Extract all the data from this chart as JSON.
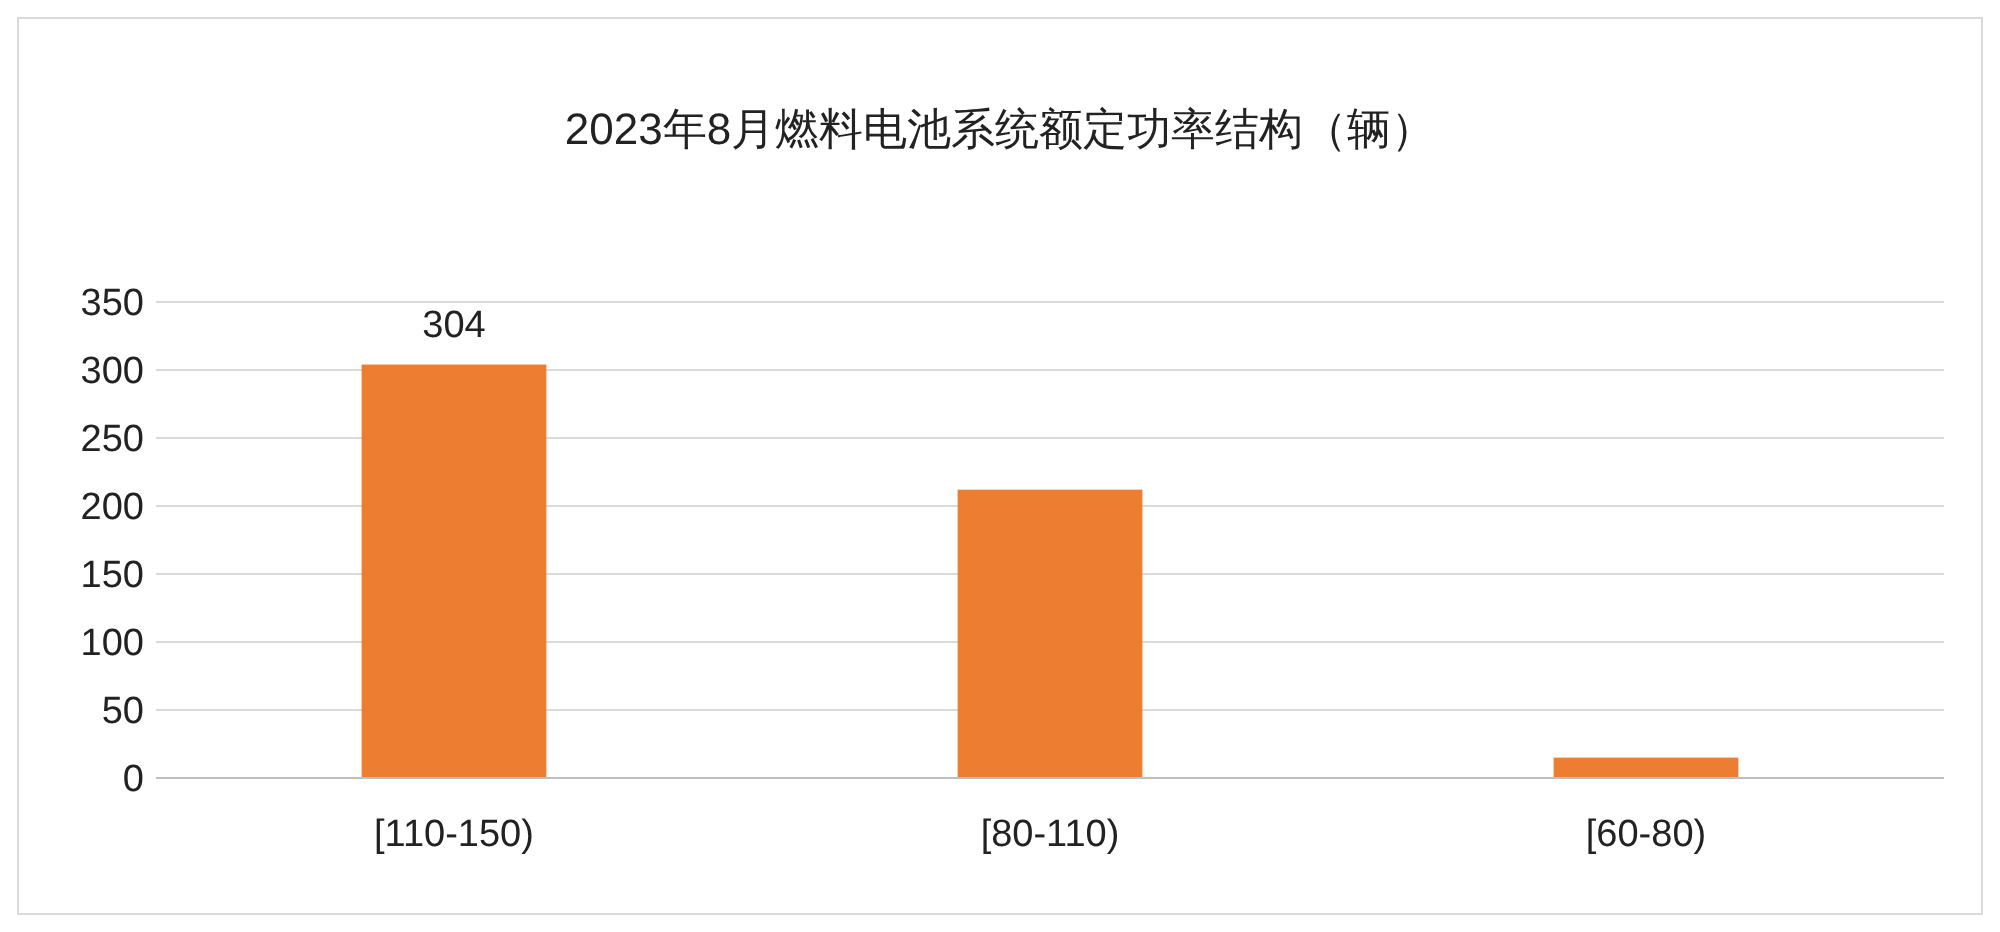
{
  "chart_data": {
    "type": "bar",
    "title": "2023年8月燃料电池系统额定功率结构（辆）",
    "categories": [
      "[110-150)",
      "[80-110)",
      "[60-80)"
    ],
    "values": [
      304,
      212,
      15
    ],
    "value_labels": [
      "304",
      null,
      null
    ],
    "color": "#ed7d31",
    "ylim": [
      0,
      350
    ],
    "yticks": [
      0,
      50,
      100,
      150,
      200,
      250,
      300,
      350
    ],
    "grid": "y"
  }
}
